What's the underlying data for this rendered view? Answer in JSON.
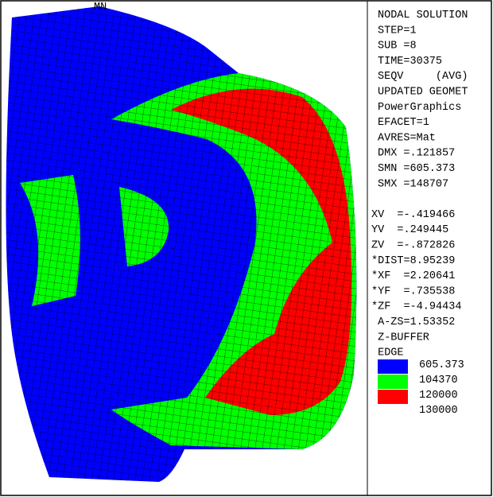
{
  "model_label": "MN",
  "info_panel": [
    "NODAL SOLUTION",
    "STEP=1",
    "SUB =8",
    "TIME=30375",
    "SEQV     (AVG)",
    "UPDATED GEOMET",
    "PowerGraphics",
    "EFACET=1",
    "AVRES=Mat",
    "DMX =.121857",
    "SMN =605.373",
    "SMX =148707"
  ],
  "view_panel": [
    "XV  =-.419466",
    "YV  =.249445",
    "ZV  =-.872826",
    "*DIST=8.95239",
    "*XF  =2.20641",
    "*YF  =.735538",
    "*ZF  =-4.94434",
    " A-ZS=1.53352",
    " Z-BUFFER",
    " EDGE"
  ],
  "legend": {
    "colors": [
      "#0000ff",
      "#00ff00",
      "#ff0000"
    ],
    "labels": [
      "605.373",
      "104370",
      "120000",
      "130000"
    ]
  }
}
